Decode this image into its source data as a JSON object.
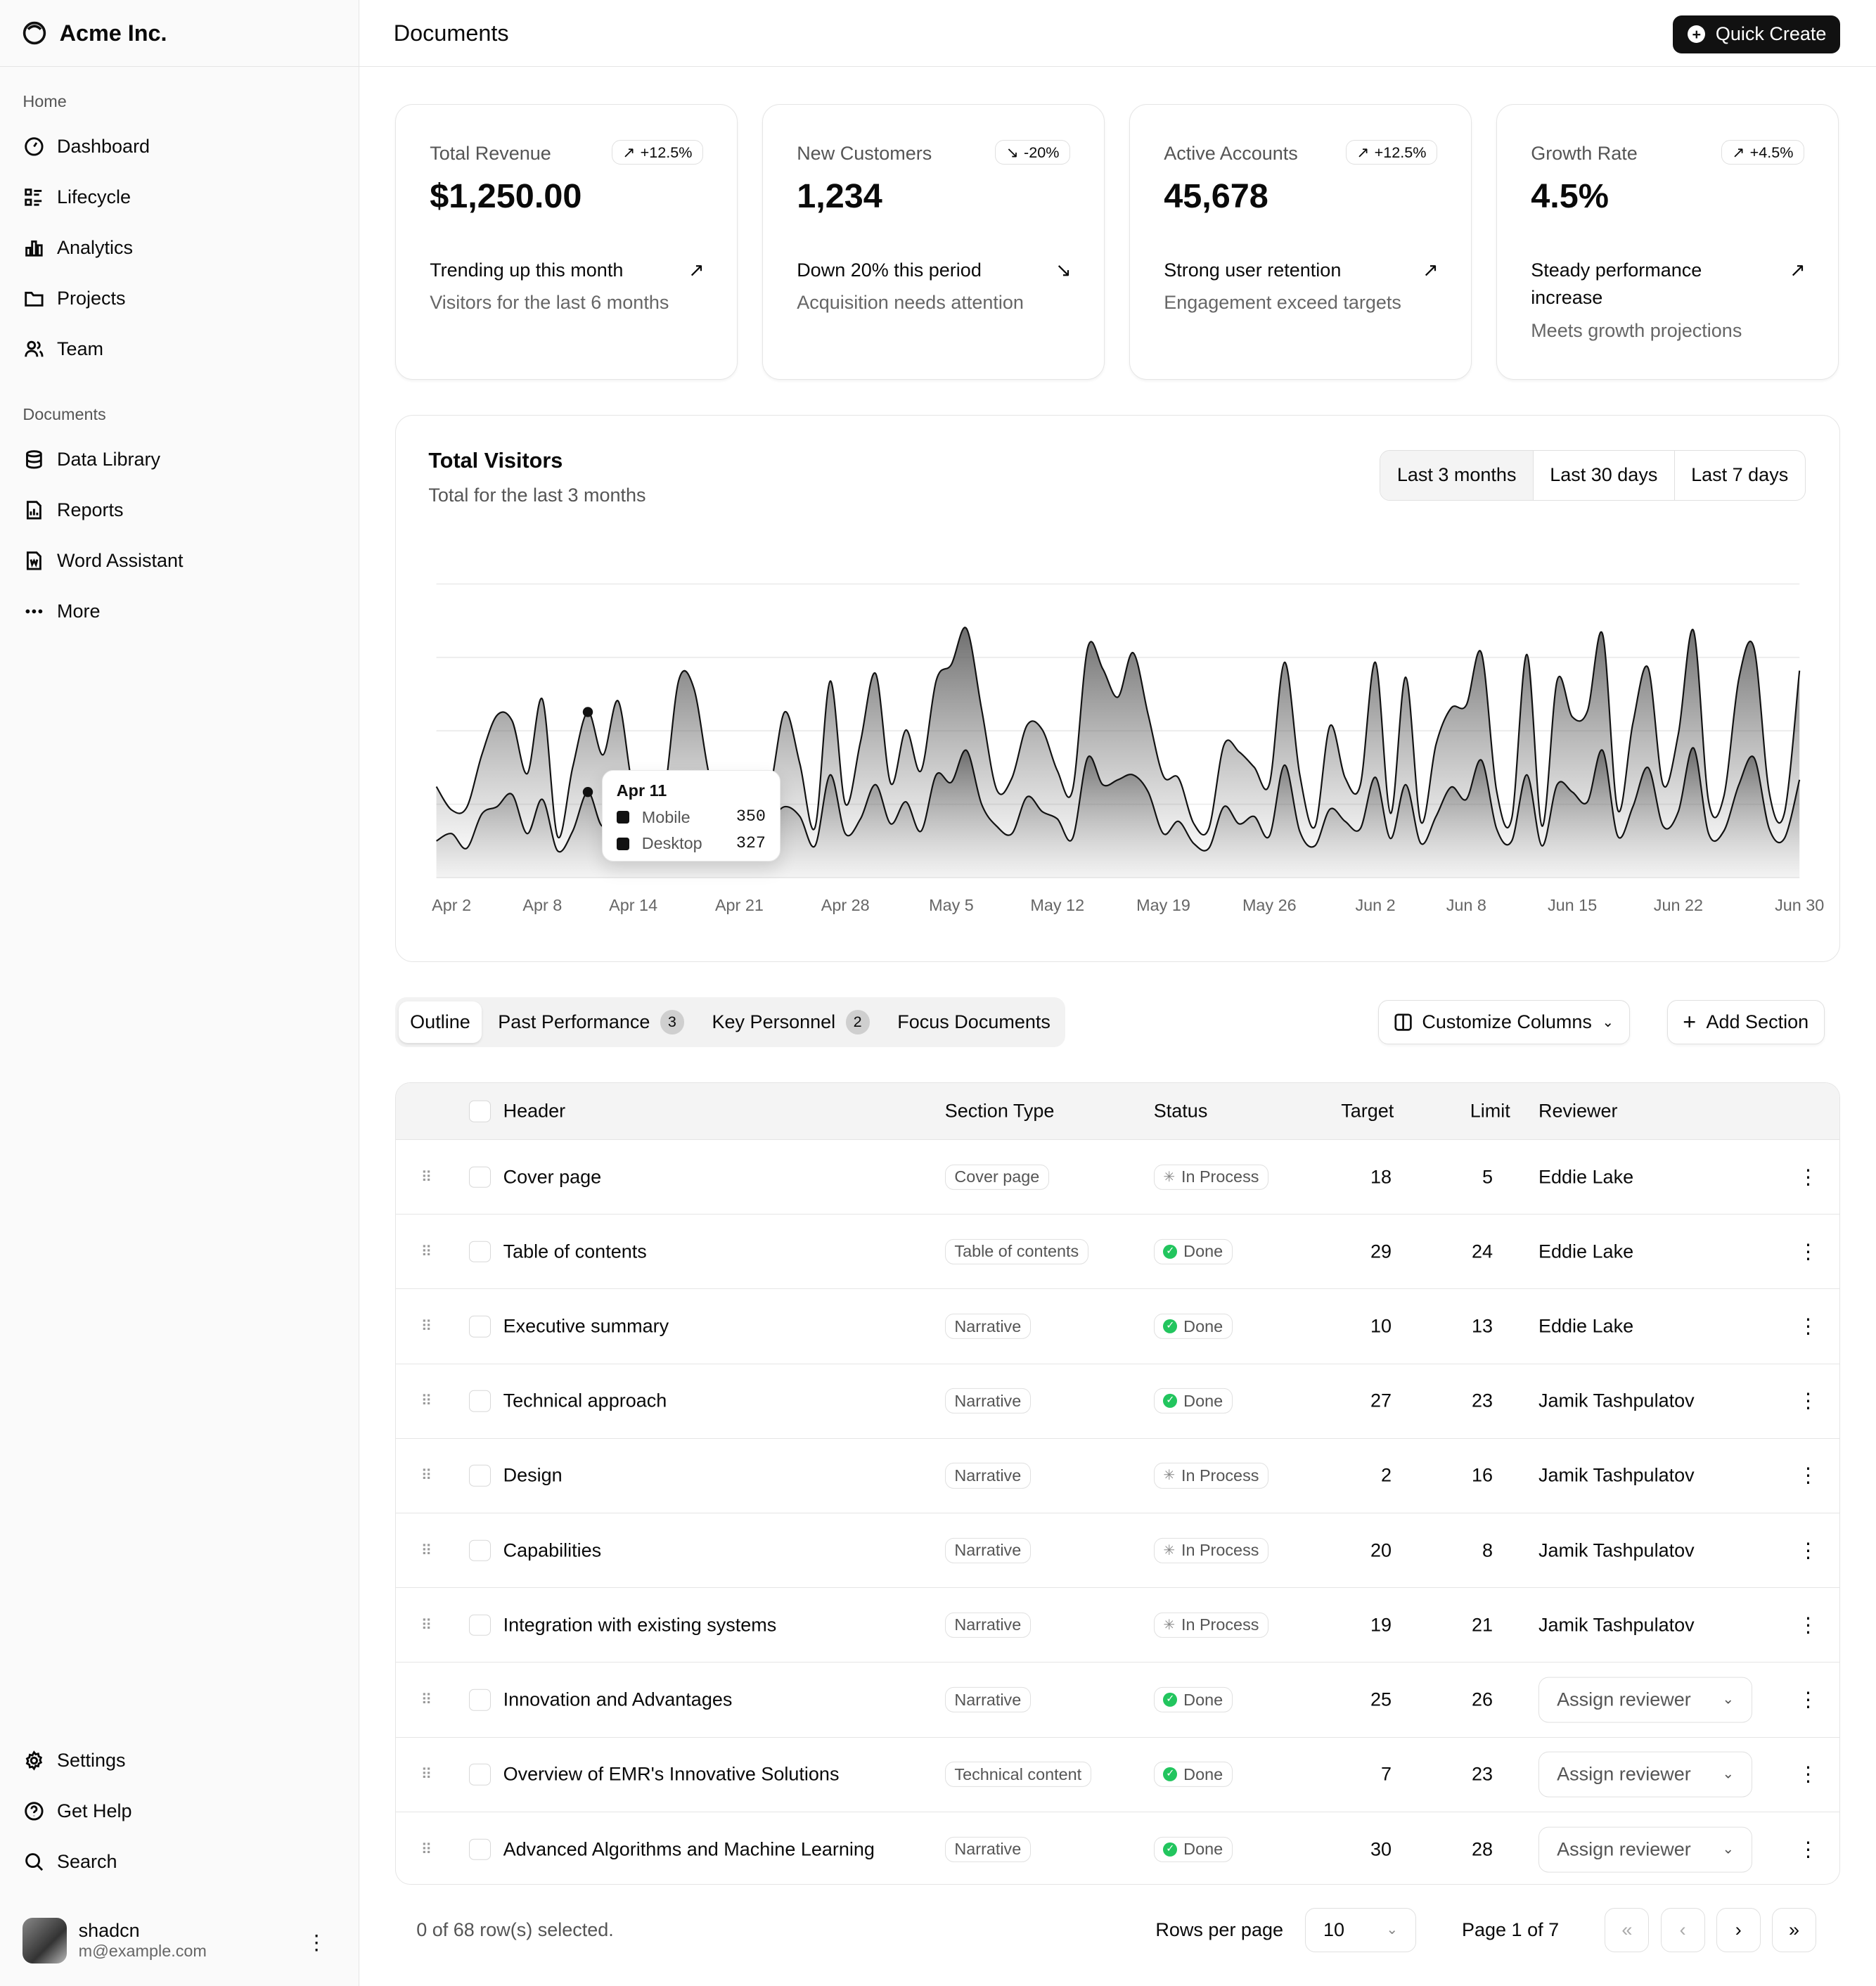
{
  "sidebar": {
    "brand": "Acme Inc.",
    "home_label": "Home",
    "home_items": [
      {
        "label": "Dashboard",
        "icon": "gauge-icon"
      },
      {
        "label": "Lifecycle",
        "icon": "list-details-icon"
      },
      {
        "label": "Analytics",
        "icon": "chart-bar-icon"
      },
      {
        "label": "Projects",
        "icon": "folder-icon"
      },
      {
        "label": "Team",
        "icon": "users-icon"
      }
    ],
    "documents_label": "Documents",
    "doc_items": [
      {
        "label": "Data Library",
        "icon": "database-icon"
      },
      {
        "label": "Reports",
        "icon": "report-icon"
      },
      {
        "label": "Word Assistant",
        "icon": "file-word-icon"
      },
      {
        "label": "More",
        "icon": "dots-icon"
      }
    ],
    "bottom_items": [
      {
        "label": "Settings",
        "icon": "gear-icon"
      },
      {
        "label": "Get Help",
        "icon": "help-icon"
      },
      {
        "label": "Search",
        "icon": "search-icon"
      }
    ],
    "user": {
      "name": "shadcn",
      "email": "m@example.com"
    }
  },
  "header": {
    "title": "Documents",
    "quick_create": "Quick Create"
  },
  "cards": [
    {
      "label": "Total Revenue",
      "badge": "+12.5%",
      "badge_dir": "up",
      "value": "$1,250.00",
      "trend": "Trending up this month",
      "trend_dir": "up",
      "sub": "Visitors for the last 6 months"
    },
    {
      "label": "New Customers",
      "badge": "-20%",
      "badge_dir": "down",
      "value": "1,234",
      "trend": "Down 20% this period",
      "trend_dir": "down",
      "sub": "Acquisition needs attention"
    },
    {
      "label": "Active Accounts",
      "badge": "+12.5%",
      "badge_dir": "up",
      "value": "45,678",
      "trend": "Strong user retention",
      "trend_dir": "up",
      "sub": "Engagement exceed targets"
    },
    {
      "label": "Growth Rate",
      "badge": "+4.5%",
      "badge_dir": "up",
      "value": "4.5%",
      "trend": "Steady performance increase",
      "trend_dir": "up",
      "sub": "Meets growth projections"
    }
  ],
  "visitors": {
    "title": "Total Visitors",
    "subtitle": "Total for the last 3 months",
    "ranges": [
      "Last 3 months",
      "Last 30 days",
      "Last 7 days"
    ],
    "selected_range": "Last 3 months",
    "tooltip": {
      "date": "Apr 11",
      "rows": [
        {
          "name": "Mobile",
          "value": "350"
        },
        {
          "name": "Desktop",
          "value": "327"
        }
      ]
    }
  },
  "chart_data": {
    "type": "area",
    "stacked": true,
    "grid": true,
    "ylim": [
      0,
      1200
    ],
    "x_ticks": [
      "Apr 2",
      "Apr 8",
      "Apr 14",
      "Apr 21",
      "Apr 28",
      "May 5",
      "May 12",
      "May 19",
      "May 26",
      "Jun 2",
      "Jun 8",
      "Jun 15",
      "Jun 22",
      "Jun 30"
    ],
    "x": [
      "Apr 1",
      "Apr 2",
      "Apr 3",
      "Apr 4",
      "Apr 5",
      "Apr 6",
      "Apr 7",
      "Apr 8",
      "Apr 9",
      "Apr 10",
      "Apr 11",
      "Apr 12",
      "Apr 13",
      "Apr 14",
      "Apr 15",
      "Apr 16",
      "Apr 17",
      "Apr 18",
      "Apr 19",
      "Apr 20",
      "Apr 21",
      "Apr 22",
      "Apr 23",
      "Apr 24",
      "Apr 25",
      "Apr 26",
      "Apr 27",
      "Apr 28",
      "Apr 29",
      "Apr 30",
      "May 1",
      "May 2",
      "May 3",
      "May 4",
      "May 5",
      "May 6",
      "May 7",
      "May 8",
      "May 9",
      "May 10",
      "May 11",
      "May 12",
      "May 13",
      "May 14",
      "May 15",
      "May 16",
      "May 17",
      "May 18",
      "May 19",
      "May 20",
      "May 21",
      "May 22",
      "May 23",
      "May 24",
      "May 25",
      "May 26",
      "May 27",
      "May 28",
      "May 29",
      "May 30",
      "May 31",
      "Jun 1",
      "Jun 2",
      "Jun 3",
      "Jun 4",
      "Jun 5",
      "Jun 6",
      "Jun 7",
      "Jun 8",
      "Jun 9",
      "Jun 10",
      "Jun 11",
      "Jun 12",
      "Jun 13",
      "Jun 14",
      "Jun 15",
      "Jun 16",
      "Jun 17",
      "Jun 18",
      "Jun 19",
      "Jun 20",
      "Jun 21",
      "Jun 22",
      "Jun 23",
      "Jun 24",
      "Jun 25",
      "Jun 26",
      "Jun 27",
      "Jun 28",
      "Jun 29",
      "Jun 30"
    ],
    "series": [
      {
        "name": "Mobile",
        "values": [
          150,
          180,
          120,
          260,
          290,
          340,
          180,
          320,
          110,
          190,
          350,
          210,
          380,
          220,
          170,
          190,
          360,
          410,
          180,
          150,
          200,
          170,
          230,
          290,
          250,
          130,
          420,
          180,
          240,
          380,
          220,
          310,
          190,
          420,
          390,
          520,
          300,
          210,
          180,
          330,
          270,
          240,
          160,
          490,
          380,
          400,
          420,
          350,
          180,
          230,
          140,
          120,
          290,
          220,
          250,
          170,
          460,
          190,
          130,
          280,
          230,
          200,
          410,
          160,
          380,
          140,
          250,
          370,
          320,
          480,
          200,
          150,
          420,
          130,
          380,
          350,
          310,
          520,
          170,
          290,
          450,
          210,
          270,
          530,
          180,
          190,
          380,
          490,
          200,
          160,
          400
        ]
      },
      {
        "name": "Desktop",
        "values": [
          222,
          97,
          167,
          242,
          373,
          301,
          245,
          409,
          59,
          261,
          327,
          292,
          342,
          137,
          120,
          138,
          446,
          364,
          243,
          89,
          137,
          224,
          138,
          387,
          215,
          75,
          383,
          122,
          315,
          454,
          165,
          293,
          247,
          385,
          481,
          498,
          388,
          149,
          227,
          293,
          335,
          197,
          197,
          448,
          473,
          338,
          499,
          315,
          235,
          177,
          82,
          81,
          252,
          294,
          201,
          213,
          420,
          233,
          78,
          340,
          178,
          178,
          470,
          103,
          439,
          88,
          294,
          323,
          385,
          438,
          155,
          92,
          492,
          81,
          426,
          307,
          371,
          475,
          107,
          341,
          408,
          169,
          317,
          480,
          132,
          141,
          434,
          448,
          149,
          103,
          446
        ]
      }
    ]
  },
  "tabs": [
    {
      "label": "Outline",
      "count": null
    },
    {
      "label": "Past Performance",
      "count": "3"
    },
    {
      "label": "Key Personnel",
      "count": "2"
    },
    {
      "label": "Focus Documents",
      "count": null
    }
  ],
  "actions": {
    "customize": "Customize Columns",
    "add": "Add Section"
  },
  "table": {
    "columns": [
      "Header",
      "Section Type",
      "Status",
      "Target",
      "Limit",
      "Reviewer"
    ],
    "rows": [
      {
        "header": "Cover page",
        "type": "Cover page",
        "status": "In Process",
        "target": "18",
        "limit": "5",
        "reviewer": "Eddie Lake"
      },
      {
        "header": "Table of contents",
        "type": "Table of contents",
        "status": "Done",
        "target": "29",
        "limit": "24",
        "reviewer": "Eddie Lake"
      },
      {
        "header": "Executive summary",
        "type": "Narrative",
        "status": "Done",
        "target": "10",
        "limit": "13",
        "reviewer": "Eddie Lake"
      },
      {
        "header": "Technical approach",
        "type": "Narrative",
        "status": "Done",
        "target": "27",
        "limit": "23",
        "reviewer": "Jamik Tashpulatov"
      },
      {
        "header": "Design",
        "type": "Narrative",
        "status": "In Process",
        "target": "2",
        "limit": "16",
        "reviewer": "Jamik Tashpulatov"
      },
      {
        "header": "Capabilities",
        "type": "Narrative",
        "status": "In Process",
        "target": "20",
        "limit": "8",
        "reviewer": "Jamik Tashpulatov"
      },
      {
        "header": "Integration with existing systems",
        "type": "Narrative",
        "status": "In Process",
        "target": "19",
        "limit": "21",
        "reviewer": "Jamik Tashpulatov"
      },
      {
        "header": "Innovation and Advantages",
        "type": "Narrative",
        "status": "Done",
        "target": "25",
        "limit": "26",
        "reviewer": null,
        "placeholder": "Assign reviewer"
      },
      {
        "header": "Overview of EMR's Innovative Solutions",
        "type": "Technical content",
        "status": "Done",
        "target": "7",
        "limit": "23",
        "reviewer": null,
        "placeholder": "Assign reviewer"
      },
      {
        "header": "Advanced Algorithms and Machine Learning",
        "type": "Narrative",
        "status": "Done",
        "target": "30",
        "limit": "28",
        "reviewer": null,
        "placeholder": "Assign reviewer"
      }
    ]
  },
  "footer": {
    "selected": "0 of 68 row(s) selected.",
    "rows_per_page_label": "Rows per page",
    "rows_per_page": "10",
    "page": "Page 1 of 7"
  },
  "colors": {
    "done": "#22c55e",
    "primary": "#111111"
  }
}
